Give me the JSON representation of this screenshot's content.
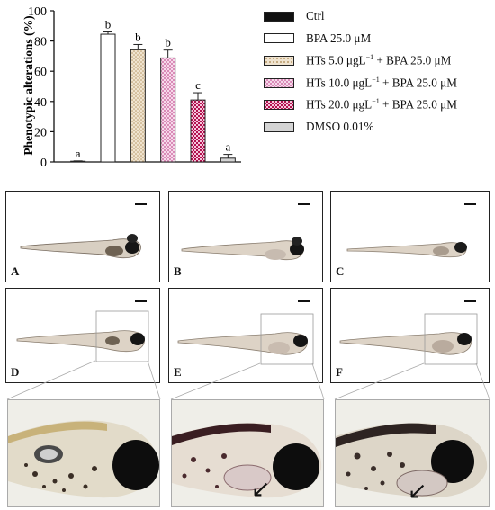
{
  "chart_data": {
    "type": "bar",
    "ylabel": "Phenotypic alterations (%)",
    "ylim": [
      0,
      100
    ],
    "yticks": [
      0,
      20,
      40,
      60,
      80,
      100
    ],
    "series": [
      {
        "name": "Ctrl",
        "value": 0.4,
        "error": 0.3,
        "letter": "a",
        "fill": "#111111",
        "pattern": "solid"
      },
      {
        "name": "BPA 25.0 μM",
        "value": 84.5,
        "error": 1.5,
        "letter": "b",
        "fill": "#ffffff",
        "pattern": "solid"
      },
      {
        "name": "HTs 5.0 μgL−1 + BPA 25.0 μM",
        "value": 74.2,
        "error": 3.5,
        "letter": "b",
        "fill": "#efe3cf",
        "pattern": "dots"
      },
      {
        "name": "HTs 10.0 μgL−1 + BPA 25.0 μM",
        "value": 68.8,
        "error": 5.2,
        "letter": "b",
        "fill": "#f3c9e2",
        "pattern": "checker-light"
      },
      {
        "name": "HTs 20.0 μgL−1 + BPA 25.0 μM",
        "value": 41.0,
        "error": 4.8,
        "letter": "c",
        "fill": "#c2185b",
        "pattern": "checker-dark"
      },
      {
        "name": "DMSO 0.01%",
        "value": 2.5,
        "error": 2.5,
        "letter": "a",
        "fill": "#d4d4d4",
        "pattern": "solid"
      }
    ],
    "legend": {
      "entries": [
        {
          "pre": "Ctrl"
        },
        {
          "pre": "BPA 25.0 μM"
        },
        {
          "pre": "HTs 5.0 μgL",
          "sup": "−1",
          "post": " + BPA 25.0 μM"
        },
        {
          "pre": "HTs 10.0 μgL",
          "sup": "−1",
          "post": " + BPA 25.0 μM"
        },
        {
          "pre": "HTs 20.0 μgL",
          "sup": "−1",
          "post": " + BPA 25.0 μM"
        },
        {
          "pre": "DMSO 0.01%"
        }
      ]
    }
  },
  "panels": {
    "letters": [
      "A",
      "B",
      "C",
      "D",
      "E",
      "F"
    ],
    "arrow_glyph": "↙"
  }
}
